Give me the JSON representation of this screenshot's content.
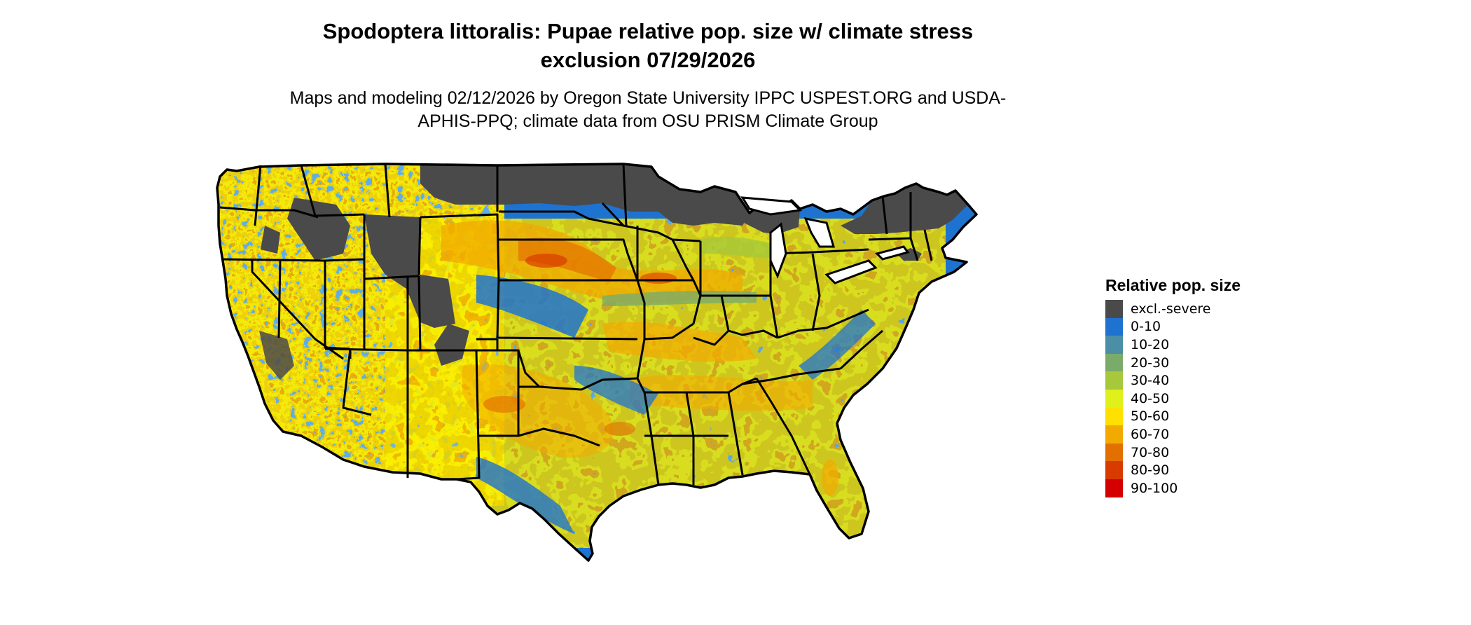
{
  "map": {
    "title": "Spodoptera littoralis: Pupae relative pop. size w/ climate stress exclusion 07/29/2026",
    "subtitle": "Maps and modeling 02/12/2026 by Oregon State University IPPC USPEST.ORG and USDA-APHIS-PPQ; climate data from OSU PRISM Climate Group",
    "region": "Contiguous United States",
    "boundary_color": "#000000",
    "ocean_color": "#ffffff"
  },
  "legend": {
    "title": "Relative pop. size",
    "items": [
      {
        "label": "excl.-severe",
        "color": "#4a4a4a"
      },
      {
        "label": "0-10",
        "color": "#1e73d0"
      },
      {
        "label": "10-20",
        "color": "#4a8fa6"
      },
      {
        "label": "20-30",
        "color": "#7aab6a"
      },
      {
        "label": "30-40",
        "color": "#a6c83a"
      },
      {
        "label": "40-50",
        "color": "#dff01a"
      },
      {
        "label": "50-60",
        "color": "#ffe000"
      },
      {
        "label": "60-70",
        "color": "#f2aa00"
      },
      {
        "label": "70-80",
        "color": "#e27000"
      },
      {
        "label": "80-90",
        "color": "#d93a00"
      },
      {
        "label": "90-100",
        "color": "#d40000"
      }
    ]
  }
}
